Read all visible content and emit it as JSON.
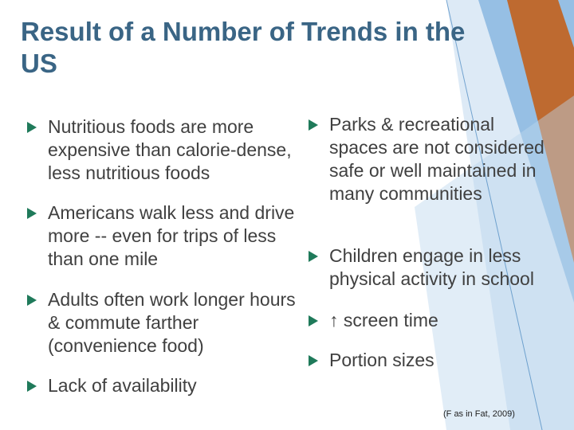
{
  "title": "Result of a Number of Trends in the US",
  "left_bullets": [
    "Nutritious foods are more expensive than calorie-dense, less nutritious foods",
    "Americans walk less and drive more -- even for trips of less than one mile",
    "Adults often work longer hours & commute farther (convenience food)",
    "Lack of availability"
  ],
  "right_bullets": [
    "Parks & recreational spaces are not considered safe or well maintained in many communities",
    "Children engage in less physical activity in school",
    "↑ screen time",
    "Portion sizes"
  ],
  "footnote": "(F as in Fat, 2009)"
}
